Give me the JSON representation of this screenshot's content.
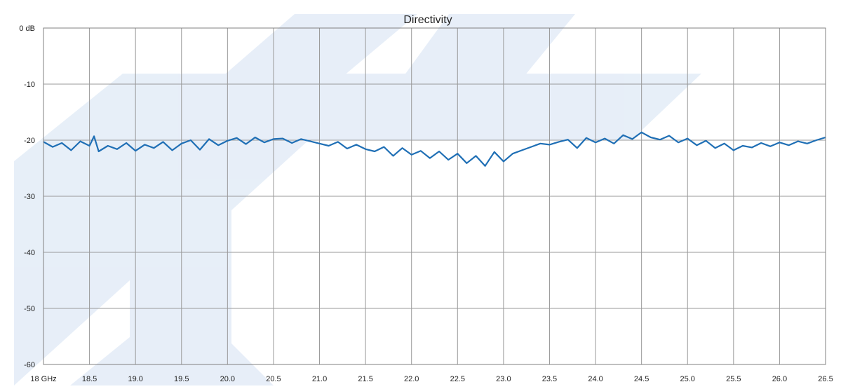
{
  "chart_data": {
    "type": "line",
    "title": "Directivity",
    "xlabel": "",
    "ylabel": "",
    "xlim": [
      18.0,
      26.5
    ],
    "ylim": [
      -60,
      0
    ],
    "x_tick_labels": [
      "18 GHz",
      "18.5",
      "19.0",
      "19.5",
      "20.0",
      "20.5",
      "21.0",
      "21.5",
      "22.0",
      "22.5",
      "23.0",
      "23.5",
      "24.0",
      "24.5",
      "25.0",
      "25.5",
      "26.0",
      "26.5"
    ],
    "y_tick_labels": [
      "0 dB",
      "-10",
      "-20",
      "-30",
      "-40",
      "-50",
      "-60"
    ],
    "grid": true,
    "series": [
      {
        "color": "#1f6fb5",
        "x": [
          18.0,
          18.1,
          18.2,
          18.3,
          18.4,
          18.5,
          18.55,
          18.6,
          18.7,
          18.8,
          18.9,
          19.0,
          19.1,
          19.2,
          19.3,
          19.4,
          19.5,
          19.6,
          19.7,
          19.8,
          19.9,
          20.0,
          20.1,
          20.2,
          20.3,
          20.4,
          20.5,
          20.6,
          20.7,
          20.8,
          20.9,
          21.0,
          21.1,
          21.2,
          21.3,
          21.4,
          21.5,
          21.6,
          21.7,
          21.8,
          21.9,
          22.0,
          22.1,
          22.2,
          22.3,
          22.4,
          22.5,
          22.6,
          22.7,
          22.8,
          22.9,
          23.0,
          23.1,
          23.2,
          23.3,
          23.4,
          23.5,
          23.6,
          23.7,
          23.8,
          23.9,
          24.0,
          24.1,
          24.2,
          24.3,
          24.4,
          24.5,
          24.6,
          24.7,
          24.8,
          24.9,
          25.0,
          25.1,
          25.2,
          25.3,
          25.4,
          25.5,
          25.6,
          25.7,
          25.8,
          25.9,
          26.0,
          26.1,
          26.2,
          26.3,
          26.4,
          26.5
        ],
        "y": [
          -20.3,
          -21.2,
          -20.5,
          -21.8,
          -20.2,
          -21.0,
          -19.3,
          -22.0,
          -21.0,
          -21.6,
          -20.5,
          -21.9,
          -20.8,
          -21.4,
          -20.3,
          -21.8,
          -20.6,
          -20.0,
          -21.7,
          -19.8,
          -20.9,
          -20.1,
          -19.6,
          -20.7,
          -19.5,
          -20.4,
          -19.8,
          -19.7,
          -20.5,
          -19.8,
          -20.2,
          -20.6,
          -21.0,
          -20.3,
          -21.5,
          -20.8,
          -21.6,
          -22.0,
          -21.2,
          -22.8,
          -21.4,
          -22.6,
          -21.9,
          -23.2,
          -22.0,
          -23.5,
          -22.4,
          -24.1,
          -22.8,
          -24.6,
          -22.1,
          -23.8,
          -22.4,
          -21.8,
          -21.2,
          -20.6,
          -20.8,
          -20.3,
          -19.9,
          -21.4,
          -19.6,
          -20.4,
          -19.7,
          -20.6,
          -19.1,
          -19.8,
          -18.6,
          -19.5,
          -19.9,
          -19.2,
          -20.4,
          -19.7,
          -20.9,
          -20.1,
          -21.4,
          -20.6,
          -21.8,
          -21.0,
          -21.3,
          -20.5,
          -21.1,
          -20.4,
          -20.9,
          -20.2,
          -20.6,
          -20.0,
          -19.5
        ]
      }
    ]
  }
}
